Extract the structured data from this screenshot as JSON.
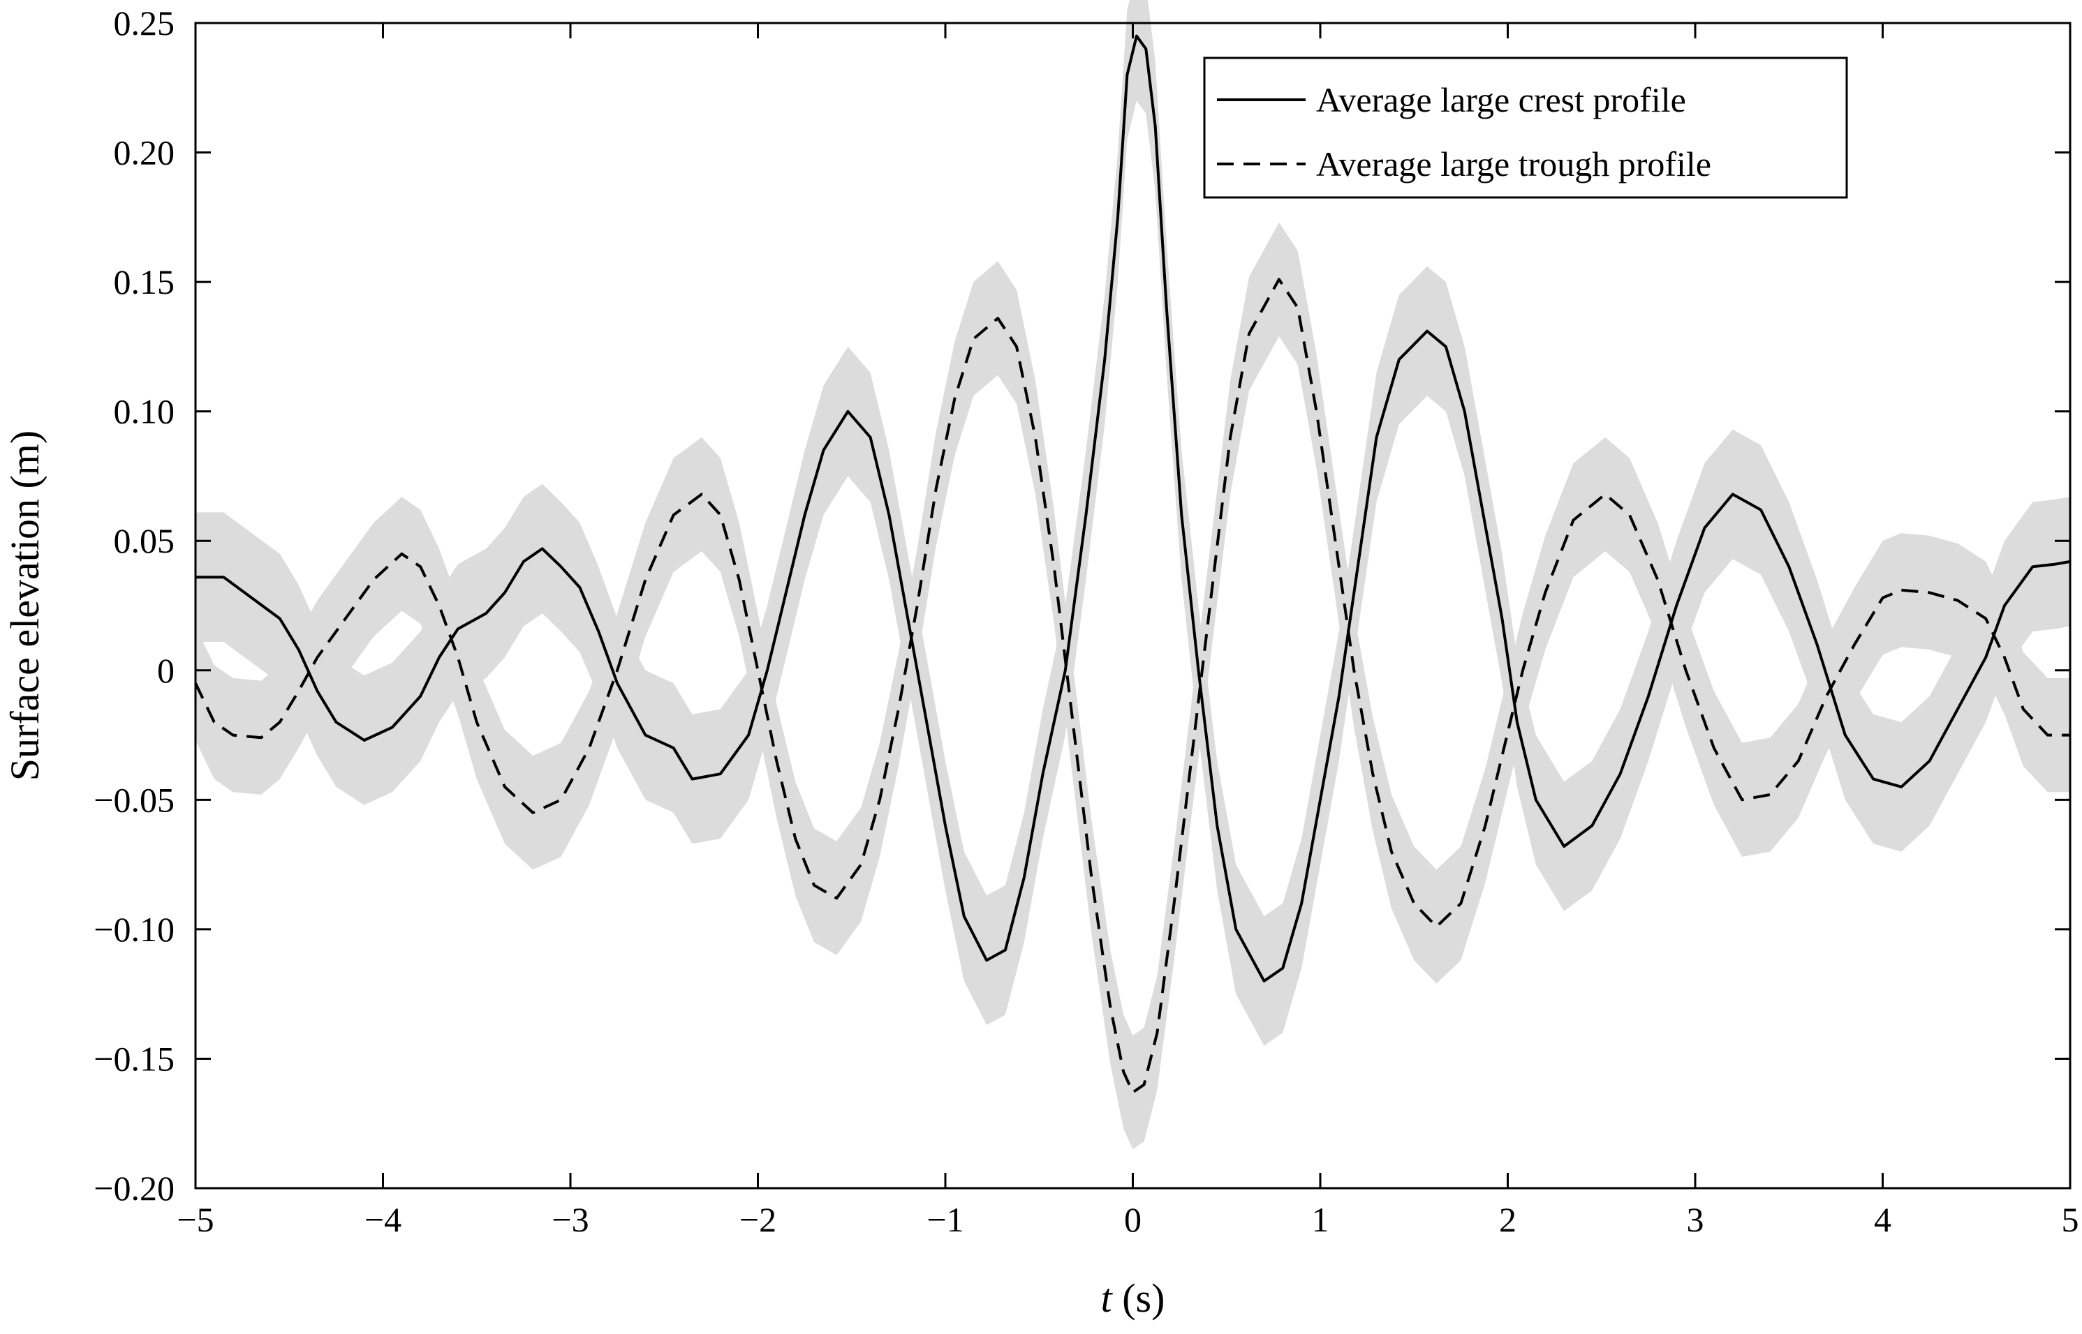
{
  "chart_data": {
    "type": "line",
    "xlabel_italic": "t",
    "xlabel_rest": " (s)",
    "ylabel": "Surface elevation (m)",
    "xlim": [
      -5,
      5
    ],
    "ylim": [
      -0.2,
      0.25
    ],
    "x_ticks": [
      -5,
      -4,
      -3,
      -2,
      -1,
      0,
      1,
      2,
      3,
      4,
      5
    ],
    "x_tick_labels": [
      "−5",
      "−4",
      "−3",
      "−2",
      "−1",
      "0",
      "1",
      "2",
      "3",
      "4",
      "5"
    ],
    "y_ticks": [
      -0.2,
      -0.15,
      -0.1,
      -0.05,
      0,
      0.05,
      0.1,
      0.15,
      0.2,
      0.25
    ],
    "y_tick_labels": [
      "−0.20",
      "−0.15",
      "−0.10",
      "−0.05",
      "0",
      "0.05",
      "0.10",
      "0.15",
      "0.20",
      "0.25"
    ],
    "grid": false,
    "legend_position": "top-right",
    "band_color": "#dcdcdc",
    "line_color": "#000000",
    "series": [
      {
        "name": "Average large crest profile",
        "style": "solid",
        "band_halfwidth": 0.025,
        "points": [
          [
            -5.0,
            0.036
          ],
          [
            -4.85,
            0.036
          ],
          [
            -4.7,
            0.028
          ],
          [
            -4.55,
            0.02
          ],
          [
            -4.45,
            0.008
          ],
          [
            -4.35,
            -0.008
          ],
          [
            -4.25,
            -0.02
          ],
          [
            -4.1,
            -0.027
          ],
          [
            -3.95,
            -0.022
          ],
          [
            -3.8,
            -0.01
          ],
          [
            -3.7,
            0.005
          ],
          [
            -3.6,
            0.016
          ],
          [
            -3.45,
            0.022
          ],
          [
            -3.35,
            0.03
          ],
          [
            -3.25,
            0.042
          ],
          [
            -3.15,
            0.047
          ],
          [
            -3.05,
            0.04
          ],
          [
            -2.95,
            0.032
          ],
          [
            -2.85,
            0.015
          ],
          [
            -2.75,
            -0.005
          ],
          [
            -2.6,
            -0.025
          ],
          [
            -2.45,
            -0.03
          ],
          [
            -2.35,
            -0.042
          ],
          [
            -2.2,
            -0.04
          ],
          [
            -2.05,
            -0.025
          ],
          [
            -1.95,
            0.0
          ],
          [
            -1.85,
            0.03
          ],
          [
            -1.75,
            0.06
          ],
          [
            -1.65,
            0.085
          ],
          [
            -1.52,
            0.1
          ],
          [
            -1.4,
            0.09
          ],
          [
            -1.3,
            0.06
          ],
          [
            -1.2,
            0.02
          ],
          [
            -1.1,
            -0.02
          ],
          [
            -1.0,
            -0.06
          ],
          [
            -0.9,
            -0.095
          ],
          [
            -0.78,
            -0.112
          ],
          [
            -0.68,
            -0.108
          ],
          [
            -0.58,
            -0.08
          ],
          [
            -0.48,
            -0.04
          ],
          [
            -0.36,
            0.0
          ],
          [
            -0.25,
            0.06
          ],
          [
            -0.15,
            0.12
          ],
          [
            -0.08,
            0.175
          ],
          [
            -0.03,
            0.23
          ],
          [
            0.02,
            0.245
          ],
          [
            0.07,
            0.24
          ],
          [
            0.12,
            0.21
          ],
          [
            0.18,
            0.14
          ],
          [
            0.26,
            0.06
          ],
          [
            0.35,
            0.0
          ],
          [
            0.45,
            -0.06
          ],
          [
            0.55,
            -0.1
          ],
          [
            0.7,
            -0.12
          ],
          [
            0.8,
            -0.115
          ],
          [
            0.9,
            -0.09
          ],
          [
            1.0,
            -0.05
          ],
          [
            1.1,
            -0.01
          ],
          [
            1.2,
            0.04
          ],
          [
            1.3,
            0.09
          ],
          [
            1.42,
            0.12
          ],
          [
            1.57,
            0.131
          ],
          [
            1.67,
            0.125
          ],
          [
            1.77,
            0.1
          ],
          [
            1.87,
            0.06
          ],
          [
            1.97,
            0.02
          ],
          [
            2.05,
            -0.02
          ],
          [
            2.15,
            -0.05
          ],
          [
            2.3,
            -0.068
          ],
          [
            2.45,
            -0.06
          ],
          [
            2.6,
            -0.04
          ],
          [
            2.75,
            -0.01
          ],
          [
            2.9,
            0.025
          ],
          [
            3.05,
            0.055
          ],
          [
            3.2,
            0.068
          ],
          [
            3.35,
            0.062
          ],
          [
            3.5,
            0.04
          ],
          [
            3.65,
            0.01
          ],
          [
            3.8,
            -0.025
          ],
          [
            3.95,
            -0.042
          ],
          [
            4.1,
            -0.045
          ],
          [
            4.25,
            -0.035
          ],
          [
            4.4,
            -0.015
          ],
          [
            4.55,
            0.005
          ],
          [
            4.65,
            0.025
          ],
          [
            4.8,
            0.04
          ],
          [
            4.92,
            0.041
          ],
          [
            5.0,
            0.042
          ]
        ]
      },
      {
        "name": "Average large trough profile",
        "style": "dashed",
        "band_halfwidth": 0.022,
        "points": [
          [
            -5.0,
            -0.005
          ],
          [
            -4.9,
            -0.02
          ],
          [
            -4.8,
            -0.025
          ],
          [
            -4.65,
            -0.026
          ],
          [
            -4.55,
            -0.02
          ],
          [
            -4.45,
            -0.008
          ],
          [
            -4.35,
            0.005
          ],
          [
            -4.2,
            0.02
          ],
          [
            -4.05,
            0.035
          ],
          [
            -3.9,
            0.045
          ],
          [
            -3.8,
            0.04
          ],
          [
            -3.7,
            0.025
          ],
          [
            -3.6,
            0.005
          ],
          [
            -3.5,
            -0.02
          ],
          [
            -3.35,
            -0.045
          ],
          [
            -3.2,
            -0.055
          ],
          [
            -3.05,
            -0.05
          ],
          [
            -2.9,
            -0.03
          ],
          [
            -2.75,
            0.0
          ],
          [
            -2.6,
            0.035
          ],
          [
            -2.45,
            0.06
          ],
          [
            -2.3,
            0.068
          ],
          [
            -2.2,
            0.06
          ],
          [
            -2.1,
            0.035
          ],
          [
            -2.0,
            0.0
          ],
          [
            -1.9,
            -0.035
          ],
          [
            -1.8,
            -0.065
          ],
          [
            -1.7,
            -0.083
          ],
          [
            -1.58,
            -0.088
          ],
          [
            -1.45,
            -0.075
          ],
          [
            -1.35,
            -0.05
          ],
          [
            -1.25,
            -0.015
          ],
          [
            -1.15,
            0.025
          ],
          [
            -1.05,
            0.07
          ],
          [
            -0.95,
            0.105
          ],
          [
            -0.85,
            0.128
          ],
          [
            -0.72,
            0.136
          ],
          [
            -0.62,
            0.125
          ],
          [
            -0.52,
            0.09
          ],
          [
            -0.42,
            0.04
          ],
          [
            -0.32,
            -0.02
          ],
          [
            -0.22,
            -0.08
          ],
          [
            -0.12,
            -0.13
          ],
          [
            -0.05,
            -0.155
          ],
          [
            0.0,
            -0.163
          ],
          [
            0.06,
            -0.16
          ],
          [
            0.13,
            -0.14
          ],
          [
            0.22,
            -0.09
          ],
          [
            0.32,
            -0.03
          ],
          [
            0.42,
            0.03
          ],
          [
            0.52,
            0.09
          ],
          [
            0.62,
            0.13
          ],
          [
            0.78,
            0.151
          ],
          [
            0.88,
            0.14
          ],
          [
            0.98,
            0.1
          ],
          [
            1.08,
            0.05
          ],
          [
            1.18,
            0.0
          ],
          [
            1.28,
            -0.04
          ],
          [
            1.38,
            -0.07
          ],
          [
            1.5,
            -0.09
          ],
          [
            1.62,
            -0.099
          ],
          [
            1.75,
            -0.09
          ],
          [
            1.88,
            -0.06
          ],
          [
            1.98,
            -0.03
          ],
          [
            2.08,
            0.0
          ],
          [
            2.2,
            0.03
          ],
          [
            2.35,
            0.058
          ],
          [
            2.52,
            0.068
          ],
          [
            2.65,
            0.06
          ],
          [
            2.8,
            0.035
          ],
          [
            2.95,
            0.0
          ],
          [
            3.1,
            -0.03
          ],
          [
            3.25,
            -0.05
          ],
          [
            3.4,
            -0.048
          ],
          [
            3.55,
            -0.035
          ],
          [
            3.7,
            -0.01
          ],
          [
            3.85,
            0.01
          ],
          [
            4.0,
            0.028
          ],
          [
            4.1,
            0.031
          ],
          [
            4.25,
            0.03
          ],
          [
            4.4,
            0.027
          ],
          [
            4.55,
            0.02
          ],
          [
            4.65,
            0.005
          ],
          [
            4.75,
            -0.015
          ],
          [
            4.88,
            -0.025
          ],
          [
            5.0,
            -0.025
          ]
        ]
      }
    ]
  }
}
